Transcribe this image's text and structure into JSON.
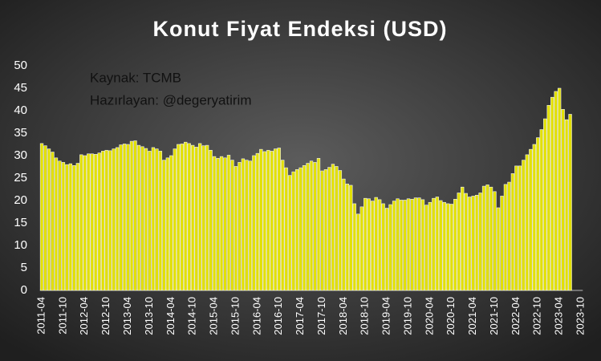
{
  "chart_data": {
    "type": "bar",
    "title": "Konut Fiyat Endeksi (USD)",
    "annotations": [
      "Kaynak: TCMB",
      "Hazırlayan: @degeryatirim"
    ],
    "color": "#e2e000",
    "categories": [
      "2011-04",
      null,
      null,
      null,
      null,
      null,
      "2011-10",
      null,
      null,
      null,
      null,
      null,
      "2012-04",
      null,
      null,
      null,
      null,
      null,
      "2012-10",
      null,
      null,
      null,
      null,
      null,
      "2013-04",
      null,
      null,
      null,
      null,
      null,
      "2013-10",
      null,
      null,
      null,
      null,
      null,
      "2014-04",
      null,
      null,
      null,
      null,
      null,
      "2014-10",
      null,
      null,
      null,
      null,
      null,
      "2015-04",
      null,
      null,
      null,
      null,
      null,
      "2015-10",
      null,
      null,
      null,
      null,
      null,
      "2016-04",
      null,
      null,
      null,
      null,
      null,
      "2016-10",
      null,
      null,
      null,
      null,
      null,
      "2017-04",
      null,
      null,
      null,
      null,
      null,
      "2017-10",
      null,
      null,
      null,
      null,
      null,
      "2018-04",
      null,
      null,
      null,
      null,
      null,
      "2018-10",
      null,
      null,
      null,
      null,
      null,
      "2019-04",
      null,
      null,
      null,
      null,
      null,
      "2019-10",
      null,
      null,
      null,
      null,
      null,
      "2020-04",
      null,
      null,
      null,
      null,
      null,
      "2020-10",
      null,
      null,
      null,
      null,
      null,
      "2021-04",
      null,
      null,
      null,
      null,
      null,
      "2021-10",
      null,
      null,
      null,
      null,
      null,
      "2022-04",
      null,
      null,
      null,
      null,
      null,
      "2022-10",
      null,
      null,
      null,
      null,
      null,
      "2023-04",
      null,
      null,
      null,
      null,
      null,
      "2023-10"
    ],
    "values": [
      32.7,
      32.2,
      31.5,
      30.8,
      29.5,
      28.8,
      28.5,
      28.0,
      28.2,
      27.8,
      28.3,
      30.2,
      30.0,
      30.4,
      30.4,
      30.3,
      30.6,
      31.0,
      31.2,
      31.1,
      31.5,
      31.8,
      32.4,
      32.6,
      32.5,
      33.2,
      33.3,
      32.3,
      32.0,
      31.6,
      31.0,
      31.8,
      31.5,
      31.0,
      29.0,
      29.5,
      30.0,
      31.5,
      32.5,
      32.6,
      33.0,
      32.7,
      32.3,
      31.9,
      32.7,
      32.2,
      32.3,
      31.2,
      29.8,
      29.4,
      29.8,
      29.5,
      30.1,
      29.0,
      27.6,
      28.5,
      29.3,
      29.0,
      28.8,
      30.0,
      30.5,
      31.4,
      30.9,
      31.2,
      31.0,
      31.5,
      31.7,
      29.0,
      27.3,
      25.6,
      26.4,
      26.9,
      27.3,
      27.8,
      28.3,
      28.8,
      28.5,
      29.4,
      26.6,
      26.9,
      27.4,
      28.1,
      27.6,
      26.7,
      24.8,
      23.7,
      23.4,
      19.3,
      17.0,
      18.6,
      20.5,
      20.4,
      19.9,
      20.7,
      20.2,
      19.3,
      18.3,
      19.1,
      19.9,
      20.4,
      20.1,
      20.1,
      20.4,
      20.3,
      20.6,
      20.6,
      20.2,
      19.0,
      19.6,
      20.5,
      20.8,
      20.0,
      19.6,
      19.3,
      19.2,
      20.3,
      21.7,
      23.0,
      21.6,
      20.8,
      21.0,
      21.2,
      21.7,
      23.2,
      23.5,
      23.0,
      22.0,
      18.4,
      21.0,
      23.6,
      24.1,
      26.0,
      27.7,
      27.7,
      29.0,
      30.2,
      31.4,
      32.5,
      34.0,
      35.8,
      38.2,
      41.2,
      43.0,
      44.3,
      45.0,
      40.3,
      38.0,
      39.2,
      null,
      null,
      null
    ],
    "ylim": [
      0,
      50
    ],
    "yticks": [
      0,
      5,
      10,
      15,
      20,
      25,
      30,
      35,
      40,
      45,
      50
    ],
    "grid": false
  }
}
